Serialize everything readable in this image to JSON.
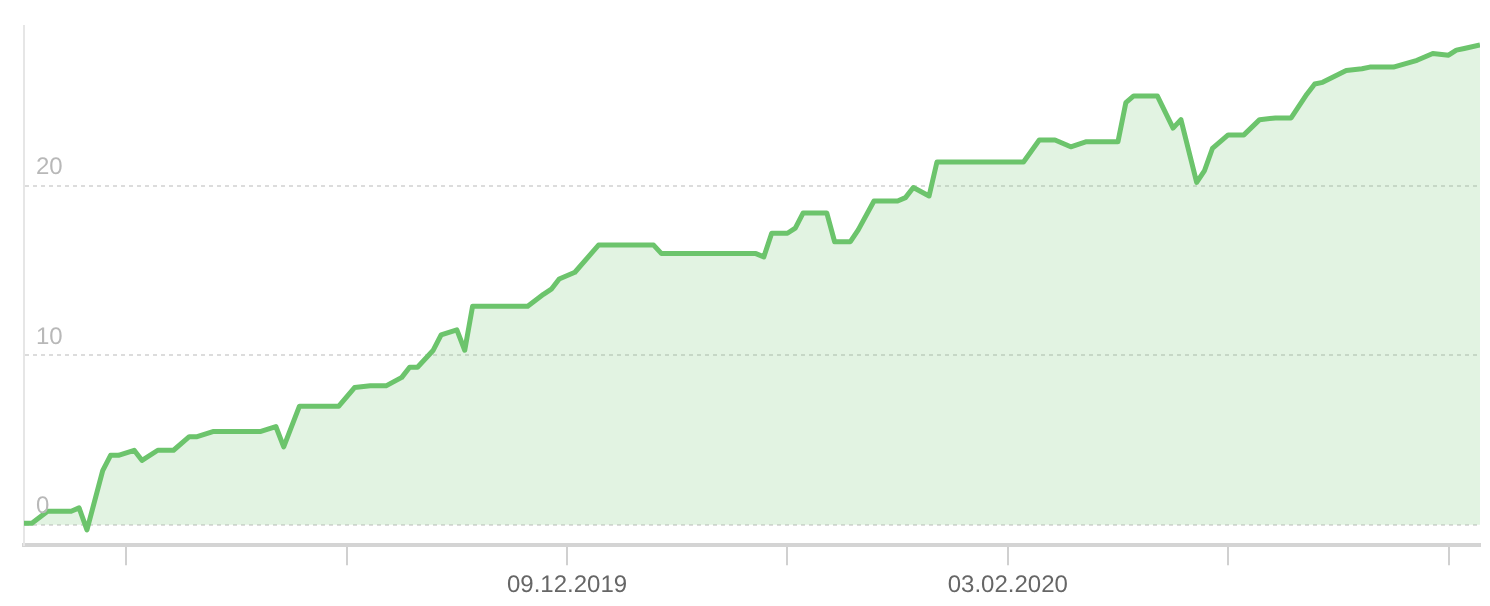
{
  "chart_data": {
    "type": "area",
    "color": "#6cc46c",
    "marker": "none",
    "grid": "y",
    "x": [
      "2019-10-01",
      "2019-10-02",
      "2019-10-04",
      "2019-10-07",
      "2019-10-08",
      "2019-10-09",
      "2019-10-11",
      "2019-10-12",
      "2019-10-13",
      "2019-10-15",
      "2019-10-16",
      "2019-10-18",
      "2019-10-20",
      "2019-10-22",
      "2019-10-23",
      "2019-10-25",
      "2019-10-31",
      "2019-11-02",
      "2019-11-03",
      "2019-11-05",
      "2019-11-10",
      "2019-11-12",
      "2019-11-14",
      "2019-11-16",
      "2019-11-18",
      "2019-11-19",
      "2019-11-20",
      "2019-11-22",
      "2019-11-23",
      "2019-11-25",
      "2019-11-26",
      "2019-11-27",
      "2019-12-04",
      "2019-12-06",
      "2019-12-07",
      "2019-12-08",
      "2019-12-10",
      "2019-12-13",
      "2019-12-20",
      "2019-12-21",
      "2020-01-02",
      "2020-01-03",
      "2020-01-04",
      "2020-01-06",
      "2020-01-07",
      "2020-01-08",
      "2020-01-11",
      "2020-01-12",
      "2020-01-14",
      "2020-01-15",
      "2020-01-17",
      "2020-01-20",
      "2020-01-21",
      "2020-01-22",
      "2020-01-24",
      "2020-01-25",
      "2020-02-05",
      "2020-02-07",
      "2020-02-09",
      "2020-02-11",
      "2020-02-13",
      "2020-02-17",
      "2020-02-18",
      "2020-02-19",
      "2020-02-22",
      "2020-02-24",
      "2020-02-25",
      "2020-02-27",
      "2020-02-28",
      "2020-02-29",
      "2020-03-02",
      "2020-03-04",
      "2020-03-06",
      "2020-03-08",
      "2020-03-10",
      "2020-03-12",
      "2020-03-13",
      "2020-03-14",
      "2020-03-17",
      "2020-03-19",
      "2020-03-20",
      "2020-03-23",
      "2020-03-26",
      "2020-03-28",
      "2020-03-30",
      "2020-03-31",
      "2020-04-01",
      "2020-04-03"
    ],
    "values": [
      0.1,
      0.1,
      0.8,
      0.8,
      1.0,
      -0.3,
      3.2,
      4.1,
      4.1,
      4.4,
      3.8,
      4.4,
      4.4,
      5.2,
      5.2,
      5.5,
      5.5,
      5.8,
      4.6,
      7.0,
      7.0,
      8.1,
      8.2,
      8.2,
      8.7,
      9.3,
      9.3,
      10.3,
      11.2,
      11.5,
      10.3,
      12.9,
      12.9,
      13.6,
      13.9,
      14.5,
      14.9,
      16.5,
      16.5,
      16.0,
      16.0,
      15.8,
      17.2,
      17.2,
      17.5,
      18.4,
      18.4,
      16.7,
      16.7,
      17.4,
      19.1,
      19.1,
      19.3,
      19.9,
      19.4,
      21.4,
      21.4,
      22.7,
      22.7,
      22.3,
      22.6,
      22.6,
      24.9,
      25.3,
      25.3,
      23.4,
      23.9,
      20.2,
      20.9,
      22.2,
      23.0,
      23.0,
      23.9,
      24.0,
      24.0,
      25.4,
      26.0,
      26.1,
      26.8,
      26.9,
      27.0,
      27.0,
      27.4,
      27.8,
      27.7,
      28.0,
      28.1,
      28.3
    ],
    "xlim": [
      "2019-10-01",
      "2020-04-03"
    ],
    "xticks": [
      {
        "value": "2019-10-14",
        "label": null
      },
      {
        "value": "2019-11-11",
        "label": null
      },
      {
        "value": "2019-12-09",
        "label": "09.12.2019"
      },
      {
        "value": "2020-01-06",
        "label": null
      },
      {
        "value": "2020-02-03",
        "label": "03.02.2020"
      },
      {
        "value": "2020-03-02",
        "label": null
      },
      {
        "value": "2020-03-30",
        "label": null
      }
    ],
    "ylim": [
      -1.2,
      29.4
    ],
    "yticks": [
      0,
      10,
      20
    ]
  }
}
